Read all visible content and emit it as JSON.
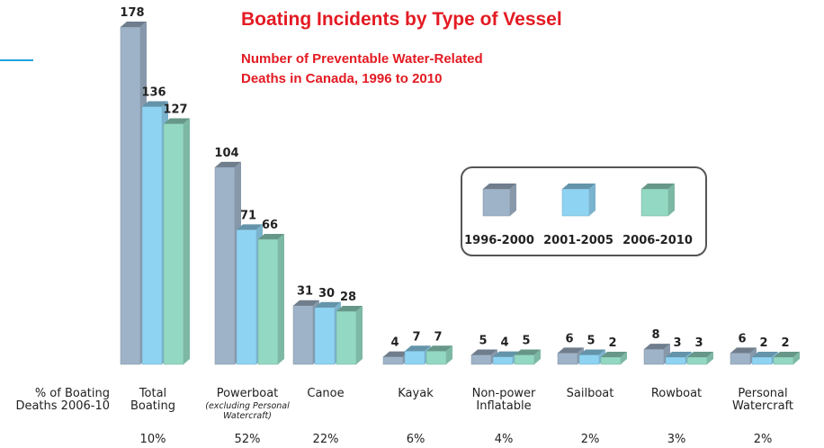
{
  "chart_data": {
    "type": "bar3d",
    "title": "Boating Incidents by Type of Vessel",
    "subtitle": [
      "Number of Preventable Water-Related",
      "Deaths in Canada, 1996 to 2010"
    ],
    "categories": [
      [
        "Total",
        "Boating"
      ],
      [
        "Powerboat"
      ],
      [
        "Canoe"
      ],
      [
        "Kayak"
      ],
      [
        "Non-power",
        "Inflatable"
      ],
      [
        "Sailboat"
      ],
      [
        "Rowboat"
      ],
      [
        "Personal",
        "Watercraft"
      ]
    ],
    "category_notes": [
      null,
      [
        "(excluding Personal",
        "Watercraft)"
      ],
      null,
      null,
      null,
      null,
      null,
      null
    ],
    "series": [
      {
        "name": "1996-2000",
        "color": "#9fb3c8",
        "values": [
          178,
          104,
          31,
          4,
          5,
          6,
          8,
          6
        ]
      },
      {
        "name": "2001-2005",
        "color": "#8fd3f2",
        "values": [
          136,
          71,
          30,
          7,
          4,
          5,
          3,
          2
        ]
      },
      {
        "name": "2006-2010",
        "color": "#93d8c2",
        "values": [
          127,
          66,
          28,
          7,
          5,
          2,
          3,
          2
        ]
      }
    ],
    "percent_row": {
      "label": [
        "% of Boating",
        "Deaths 2006-10"
      ],
      "values": [
        "10%",
        "52%",
        "22%",
        "6%",
        "4%",
        "2%",
        "3%",
        "2%"
      ]
    }
  }
}
